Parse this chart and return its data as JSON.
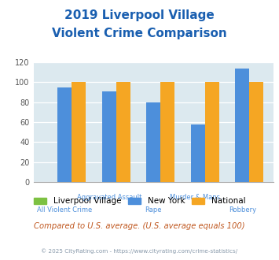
{
  "title_line1": "2019 Liverpool Village",
  "title_line2": "Violent Crime Comparison",
  "title_color": "#1a5fb0",
  "categories": [
    "All Violent Crime",
    "Aggravated Assault",
    "Rape",
    "Murder & Mans...",
    "Robbery"
  ],
  "liverpool_values": [
    0,
    0,
    0,
    0,
    0
  ],
  "newyork_values": [
    95,
    91,
    80,
    58,
    114
  ],
  "national_values": [
    100,
    100,
    100,
    100,
    100
  ],
  "liverpool_color": "#7dc142",
  "newyork_color": "#4d8fdb",
  "national_color": "#f5a623",
  "ylim": [
    0,
    120
  ],
  "yticks": [
    0,
    20,
    40,
    60,
    80,
    100,
    120
  ],
  "background_color": "#dce9ef",
  "subtitle": "Compared to U.S. average. (U.S. average equals 100)",
  "subtitle_color": "#c05820",
  "footer": "© 2025 CityRating.com - https://www.cityrating.com/crime-statistics/",
  "footer_color": "#8899aa",
  "tick_label_color": "#4d8fdb",
  "top_labels": {
    "1": "Aggravated Assault",
    "3": "Murder & Mans..."
  },
  "bottom_labels": {
    "0": "All Violent Crime",
    "2": "Rape",
    "4": "Robbery"
  }
}
